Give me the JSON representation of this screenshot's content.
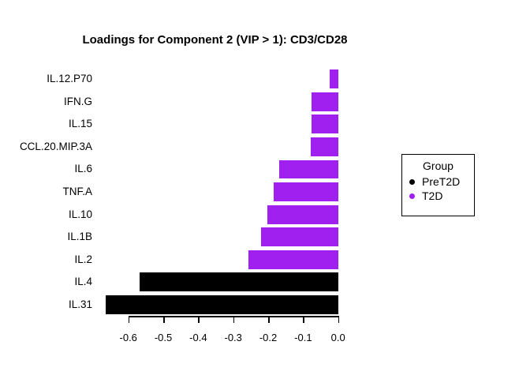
{
  "title": "Loadings for Component 2 (VIP > 1): CD3/CD28",
  "legend": {
    "title": "Group",
    "items": [
      {
        "label": "PreT2D",
        "color": "#000000"
      },
      {
        "label": "T2D",
        "color": "#A020F0"
      }
    ]
  },
  "chart_data": {
    "type": "bar",
    "orientation": "horizontal",
    "title": "Loadings for Component 2 (VIP > 1): CD3/CD28",
    "categories": [
      "IL.12.P70",
      "IFN.G",
      "IL.15",
      "CCL.20.MIP.3A",
      "IL.6",
      "TNF.A",
      "IL.10",
      "IL.1B",
      "IL.2",
      "IL.4",
      "IL.31"
    ],
    "values": [
      -0.025,
      -0.075,
      -0.075,
      -0.079,
      -0.168,
      -0.184,
      -0.202,
      -0.221,
      -0.256,
      -0.567,
      -0.665
    ],
    "groups": [
      "T2D",
      "T2D",
      "T2D",
      "T2D",
      "T2D",
      "T2D",
      "T2D",
      "T2D",
      "T2D",
      "PreT2D",
      "PreT2D"
    ],
    "group_colors": {
      "PreT2D": "#000000",
      "T2D": "#A020F0"
    },
    "xlabel": "",
    "ylabel": "",
    "xlim": [
      -0.6,
      0.0
    ],
    "x_ticks": [
      -0.6,
      -0.5,
      -0.4,
      -0.3,
      -0.2,
      -0.1,
      0.0
    ],
    "x_tick_labels": [
      "-0.6",
      "-0.5",
      "-0.4",
      "-0.3",
      "-0.2",
      "-0.1",
      "0.0"
    ],
    "grid": false,
    "legend_position": "right",
    "legend_title": "Group"
  }
}
